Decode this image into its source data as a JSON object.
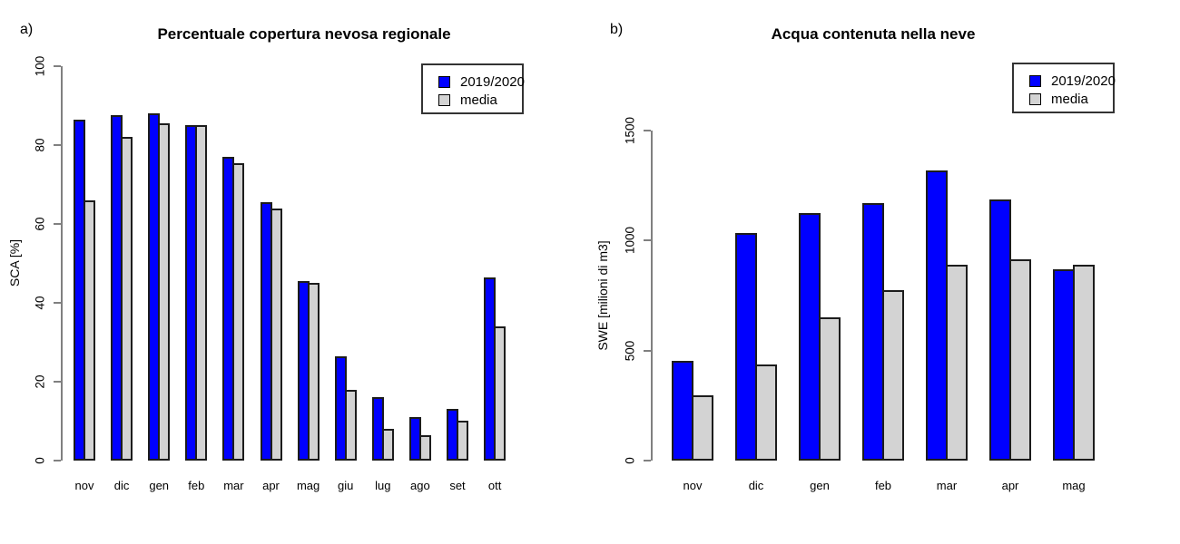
{
  "figure": {
    "background_color": "#ffffff",
    "series_colors": {
      "season": "#0000ff",
      "media": "#d3d3d3"
    },
    "bar_border_color": "#1c1c1c"
  },
  "chart_data": [
    {
      "type": "bar",
      "panel_label": "a)",
      "title": "Percentuale copertura nevosa regionale",
      "xlabel": "",
      "ylabel": "SCA [%]",
      "ylim": [
        0,
        100
      ],
      "yticks": [
        0,
        20,
        40,
        60,
        80,
        100
      ],
      "grid": false,
      "legend_position": "top-right",
      "categories": [
        "nov",
        "dic",
        "gen",
        "feb",
        "mar",
        "apr",
        "mag",
        "giu",
        "lug",
        "ago",
        "set",
        "ott"
      ],
      "series": [
        {
          "name": "2019/2020",
          "color": "#0000ff",
          "values": [
            86.5,
            87.5,
            88,
            85,
            77,
            65.5,
            45.5,
            26.5,
            16,
            11,
            13,
            46.5
          ]
        },
        {
          "name": "media",
          "color": "#d3d3d3",
          "values": [
            66,
            82,
            85.5,
            85,
            75.5,
            64,
            45,
            18,
            8,
            6.5,
            10,
            34
          ]
        }
      ]
    },
    {
      "type": "bar",
      "panel_label": "b)",
      "title": "Acqua contenuta nella neve",
      "xlabel": "",
      "ylabel": "SWE [milioni di m3]",
      "ylim": [
        0,
        1500
      ],
      "yticks": [
        0,
        500,
        1000,
        1500
      ],
      "grid": false,
      "legend_position": "top-right",
      "categories": [
        "nov",
        "dic",
        "gen",
        "feb",
        "mar",
        "apr",
        "mag"
      ],
      "series": [
        {
          "name": "2019/2020",
          "color": "#0000ff",
          "values": [
            455,
            1035,
            1125,
            1170,
            1320,
            1185,
            870
          ]
        },
        {
          "name": "media",
          "color": "#d3d3d3",
          "values": [
            295,
            435,
            650,
            775,
            890,
            915,
            890
          ]
        }
      ]
    }
  ]
}
